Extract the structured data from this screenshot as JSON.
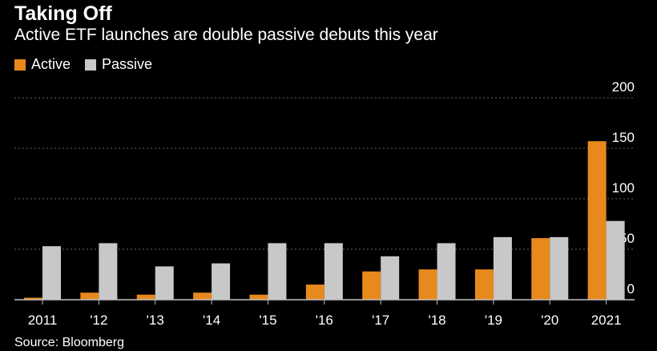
{
  "header": {
    "title": "Taking Off",
    "subtitle": "Active ETF launches are double passive debuts this year"
  },
  "legend": [
    {
      "label": "Active",
      "color": "#e8891e"
    },
    {
      "label": "Passive",
      "color": "#c8c8c8"
    }
  ],
  "source": "Source: Bloomberg",
  "chart_data": {
    "type": "bar",
    "categories": [
      "2011",
      "'12",
      "'13",
      "'14",
      "'15",
      "'16",
      "'17",
      "'18",
      "'19",
      "'20",
      "2021"
    ],
    "series": [
      {
        "name": "Active",
        "color": "#e8891e",
        "values": [
          2,
          7,
          5,
          7,
          5,
          15,
          28,
          30,
          30,
          61,
          157
        ]
      },
      {
        "name": "Passive",
        "color": "#c8c8c8",
        "values": [
          53,
          56,
          33,
          36,
          56,
          56,
          43,
          56,
          62,
          62,
          78
        ]
      }
    ],
    "ylim": [
      0,
      200
    ],
    "yticks": [
      "0",
      "50",
      "100",
      "150",
      "200"
    ],
    "y_axis_position": "right",
    "grid": true,
    "legend_position": "top-left"
  }
}
